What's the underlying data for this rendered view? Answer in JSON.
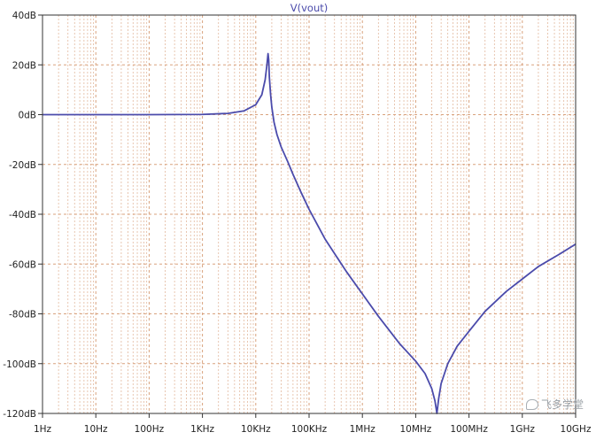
{
  "chart_data": {
    "type": "line",
    "title": "V(vout)",
    "x_scale": "log",
    "x_ticks": [
      "1Hz",
      "10Hz",
      "100Hz",
      "1KHz",
      "10KHz",
      "100KHz",
      "1MHz",
      "10MHz",
      "100MHz",
      "1GHz",
      "10GHz"
    ],
    "y_ticks": [
      "40dB",
      "20dB",
      "0dB",
      "-20dB",
      "-40dB",
      "-60dB",
      "-80dB",
      "-100dB",
      "-120dB"
    ],
    "xlim": [
      1,
      10000000000
    ],
    "ylim": [
      -120,
      40
    ],
    "grid": true,
    "colors": {
      "trace": "#4b4bab",
      "grid": "#d9a27e",
      "axis": "#333333",
      "title": "#4b4bab"
    },
    "series": [
      {
        "name": "V(vout)",
        "x": [
          1,
          10,
          100,
          1000,
          3000,
          6000,
          10000,
          13000,
          15000,
          16000,
          17000,
          17500,
          18000,
          19000,
          20000,
          22000,
          25000,
          30000,
          40000,
          50000,
          70000,
          100000,
          200000,
          500000,
          1000000,
          2000000,
          5000000,
          10000000,
          15000000,
          20000000,
          23000000,
          25000000,
          27000000,
          30000000,
          40000000,
          60000000,
          100000000,
          200000000,
          500000000,
          1000000000,
          2000000000,
          5000000000,
          10000000000
        ],
        "y": [
          0,
          0,
          0,
          0.1,
          0.5,
          1.5,
          4,
          8,
          14,
          19,
          24.5,
          22,
          15,
          8,
          3,
          -3,
          -8,
          -13,
          -19,
          -24,
          -31,
          -38,
          -50,
          -63,
          -72,
          -81,
          -92,
          -99,
          -104,
          -110,
          -115,
          -120,
          -114,
          -108,
          -100,
          -93,
          -87,
          -79,
          -71,
          -66,
          -61,
          -56,
          -52
        ]
      }
    ]
  },
  "watermark": {
    "text": "飞多学堂",
    "icon": "chat-bubble-icon"
  }
}
